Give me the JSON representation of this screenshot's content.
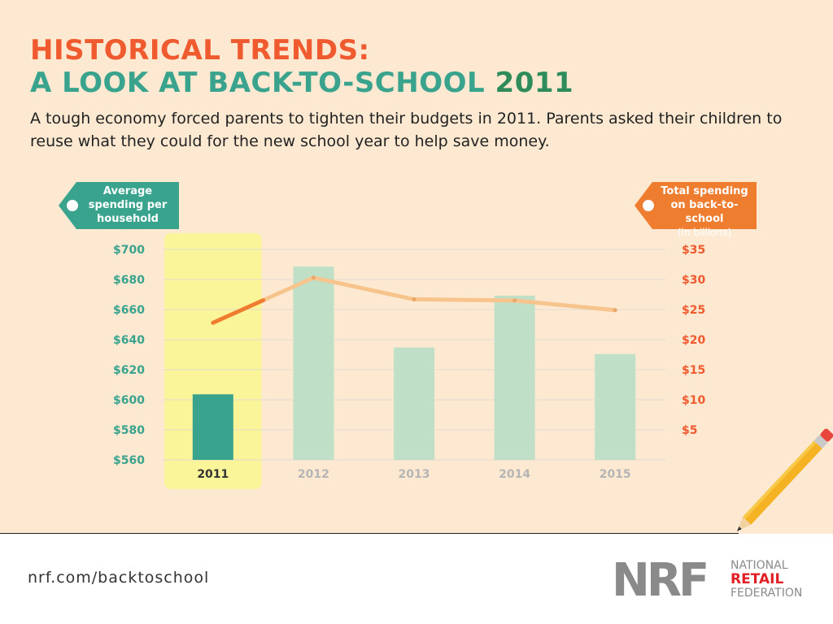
{
  "header": {
    "title_line1": "HISTORICAL TRENDS:",
    "title_line2_text": "A LOOK AT BACK-TO-SCHOOL",
    "title_line2_year": "2011",
    "subtitle": "A tough economy forced parents to tighten their budgets in 2011. Parents asked their children to reuse what they could for the new school year to help save money."
  },
  "tags": {
    "left": "Average spending per household",
    "right_main": "Total spending on back-to-school",
    "right_sub": "(in billions)"
  },
  "chart_data": {
    "type": "bar",
    "categories": [
      "2011",
      "2012",
      "2013",
      "2014",
      "2015"
    ],
    "highlight_category": "2011",
    "series": [
      {
        "name": "Average spending per household",
        "type": "bar",
        "axis": "left",
        "values": [
          603.63,
          688.62,
          634.78,
          669.28,
          630.36
        ]
      },
      {
        "name": "Total spending on back-to-school (in billions)",
        "type": "line",
        "axis": "right",
        "values": [
          22.8,
          30.3,
          26.7,
          26.5,
          24.9
        ]
      }
    ],
    "y_left": {
      "ticks": [
        "$700",
        "$680",
        "$660",
        "$640",
        "$620",
        "$600",
        "$580",
        "$560"
      ],
      "ylim": [
        560,
        700
      ]
    },
    "y_right": {
      "ticks": [
        "$35",
        "$30",
        "$25",
        "$20",
        "$15",
        "$10",
        "$5"
      ],
      "ylim": [
        0,
        35
      ]
    },
    "grid": true,
    "colors": {
      "bar_active": "#3aa38e",
      "bar_inactive": "#bfe0c6",
      "line_active": "#ef7d30",
      "line_inactive": "#f7c48d",
      "highlight": "#fbf59a",
      "left_axis": "#3aa38e",
      "right_axis": "#ef5a2f"
    }
  },
  "footer": {
    "url": "nrf.com/backtoschool",
    "logo_letters": "NRF",
    "logo_word1": "NATIONAL",
    "logo_word2": "RETAIL",
    "logo_word3": "FEDERATION"
  }
}
